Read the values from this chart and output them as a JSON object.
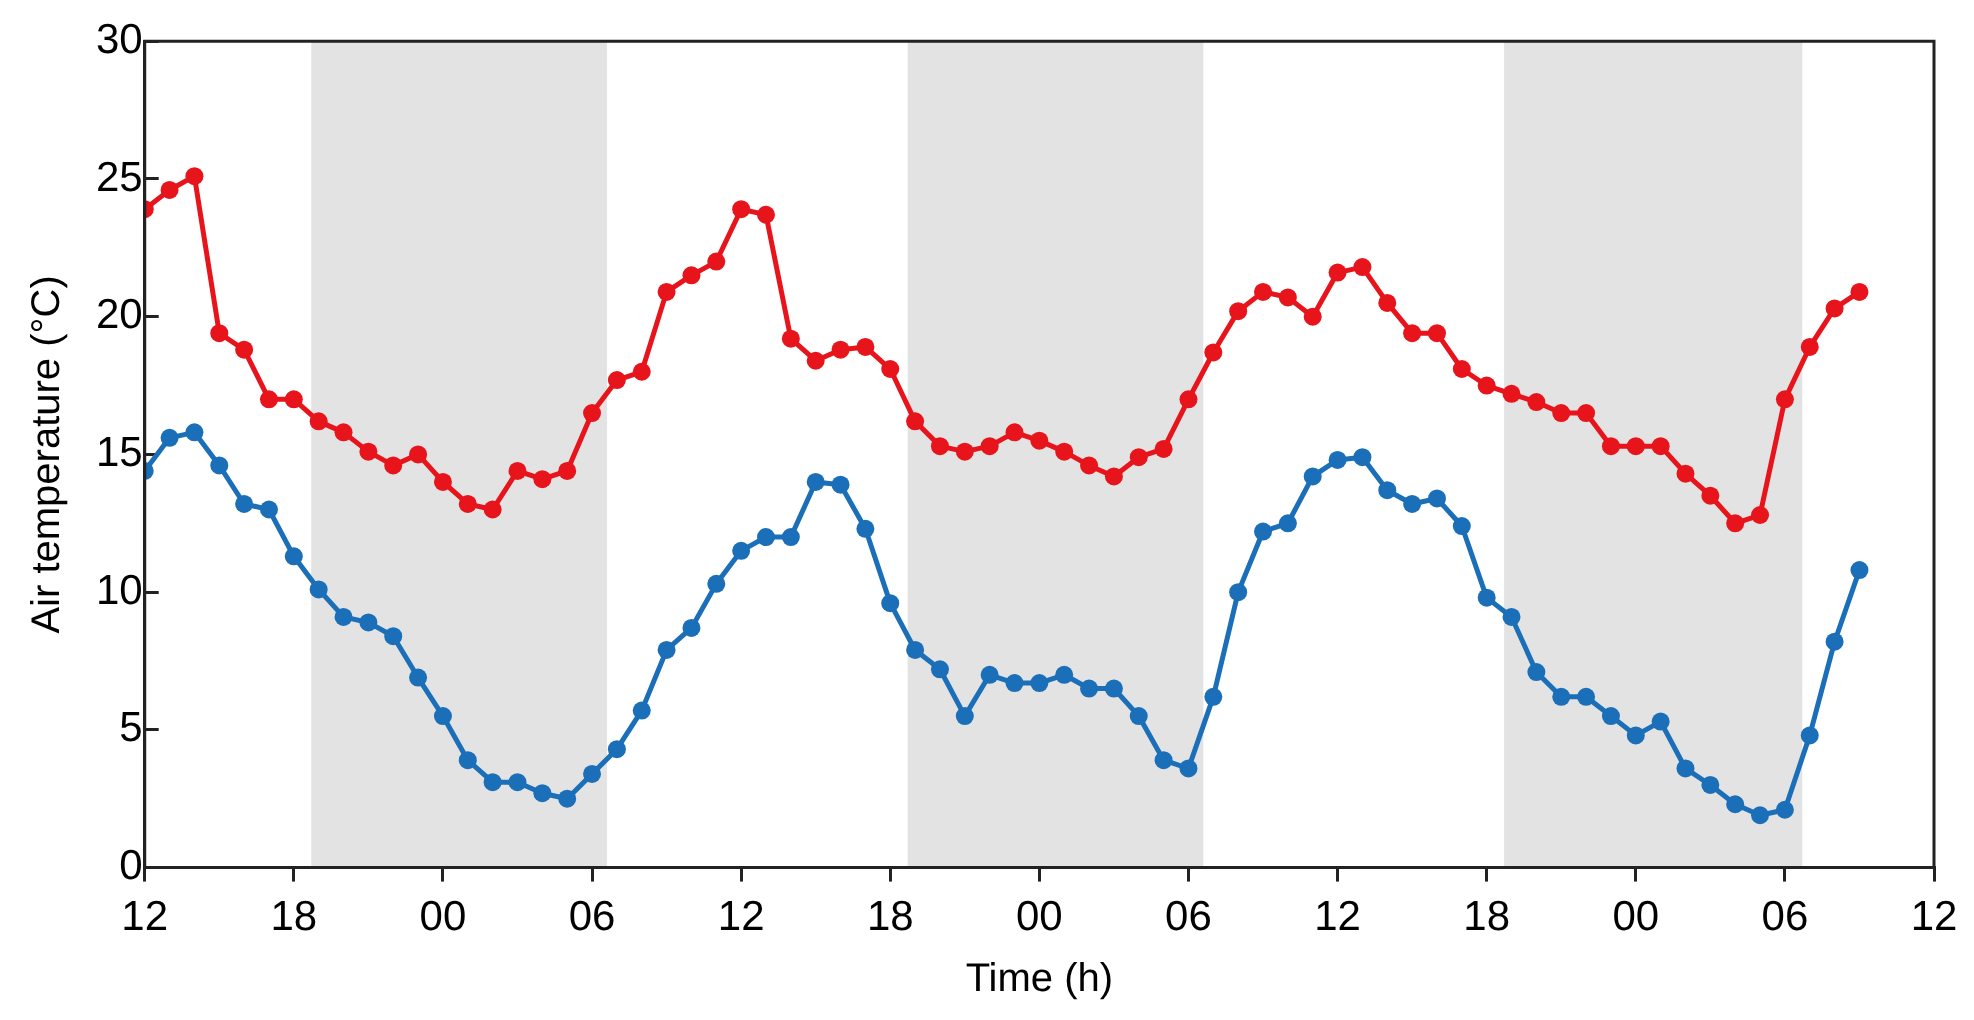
{
  "chart_data": {
    "type": "line",
    "xlabel": "Time (h)",
    "ylabel": "Air temperature (°C)",
    "x": [
      12,
      13,
      14,
      15,
      16,
      17,
      18,
      19,
      20,
      21,
      22,
      23,
      24,
      25,
      26,
      27,
      28,
      29,
      30,
      31,
      32,
      33,
      34,
      35,
      36,
      37,
      38,
      39,
      40,
      41,
      42,
      43,
      44,
      45,
      46,
      47,
      48,
      49,
      50,
      51,
      52,
      53,
      54,
      55,
      56,
      57,
      58,
      59,
      60,
      61,
      62,
      63,
      64,
      65,
      66,
      67,
      68,
      69,
      70,
      71,
      72,
      73,
      74,
      75,
      76,
      77,
      78,
      79,
      80,
      81
    ],
    "series": [
      {
        "color": "#e8141b",
        "values": [
          23.9,
          24.6,
          25.1,
          19.4,
          18.8,
          17.0,
          17.0,
          16.2,
          15.8,
          15.1,
          14.6,
          15.0,
          14.0,
          13.2,
          13.0,
          14.4,
          14.1,
          14.4,
          16.5,
          17.7,
          18.0,
          20.9,
          21.5,
          22.0,
          23.9,
          23.7,
          19.2,
          18.4,
          18.8,
          18.9,
          18.1,
          16.2,
          15.3,
          15.1,
          15.3,
          15.8,
          15.5,
          15.1,
          14.6,
          14.2,
          14.9,
          15.2,
          17.0,
          18.7,
          20.2,
          20.9,
          20.7,
          20.0,
          21.6,
          21.8,
          20.5,
          19.4,
          19.4,
          18.1,
          17.5,
          17.2,
          16.9,
          16.5,
          16.5,
          15.3,
          15.3,
          15.3,
          14.3,
          13.5,
          12.5,
          12.8,
          17.0,
          18.9,
          20.3,
          20.9
        ]
      },
      {
        "color": "#1a6fb8",
        "values": [
          14.4,
          15.6,
          15.8,
          14.6,
          13.2,
          13.0,
          11.3,
          10.1,
          9.1,
          8.9,
          8.4,
          6.9,
          5.5,
          3.9,
          3.1,
          3.1,
          2.7,
          2.5,
          3.4,
          4.3,
          5.7,
          7.9,
          8.7,
          10.3,
          11.5,
          12.0,
          12.0,
          14.0,
          13.9,
          12.3,
          9.6,
          7.9,
          7.2,
          5.5,
          7.0,
          6.7,
          6.7,
          7.0,
          6.5,
          6.5,
          5.5,
          3.9,
          3.6,
          6.2,
          10.0,
          12.2,
          12.5,
          14.2,
          14.8,
          14.9,
          13.7,
          13.2,
          13.4,
          12.4,
          9.8,
          9.1,
          7.1,
          6.2,
          6.2,
          5.5,
          4.8,
          5.3,
          3.6,
          3.0,
          2.3,
          1.9,
          2.1,
          4.8,
          8.2,
          10.8
        ]
      }
    ],
    "xlim": [
      12,
      84
    ],
    "xticks": [
      {
        "value": 12,
        "label": "12"
      },
      {
        "value": 18,
        "label": "18"
      },
      {
        "value": 24,
        "label": "00"
      },
      {
        "value": 30,
        "label": "06"
      },
      {
        "value": 36,
        "label": "12"
      },
      {
        "value": 42,
        "label": "18"
      },
      {
        "value": 48,
        "label": "00"
      },
      {
        "value": 54,
        "label": "06"
      },
      {
        "value": 60,
        "label": "12"
      },
      {
        "value": 66,
        "label": "18"
      },
      {
        "value": 72,
        "label": "00"
      },
      {
        "value": 78,
        "label": "06"
      },
      {
        "value": 84,
        "label": "12"
      }
    ],
    "ylim": [
      0,
      30
    ],
    "yticks": [
      0,
      5,
      10,
      15,
      20,
      25,
      30
    ],
    "bands": [
      {
        "axis": "x",
        "from": 18.7,
        "to": 30.6,
        "color": "#e3e3e3"
      },
      {
        "axis": "x",
        "from": 42.7,
        "to": 54.6,
        "color": "#e3e3e3"
      },
      {
        "axis": "x",
        "from": 66.7,
        "to": 78.7,
        "color": "#e3e3e3"
      }
    ],
    "marker": "circle",
    "line_style": "solid",
    "grid": false,
    "legend": false
  }
}
